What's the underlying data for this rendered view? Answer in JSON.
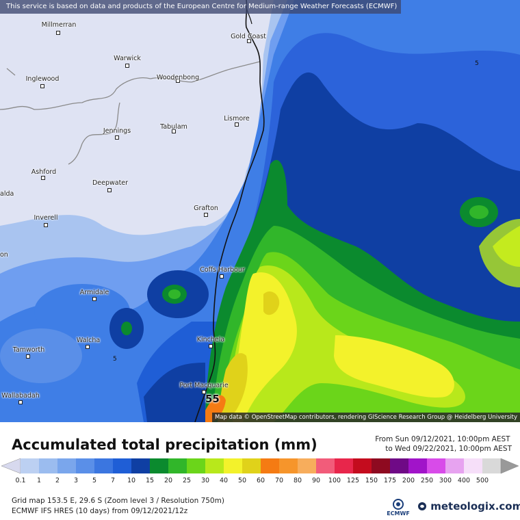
{
  "map": {
    "banner": "This service is based on data and products of the European Centre for Medium-range Weather Forecasts (ECMWF)",
    "attribution": "Map data © OpenStreetMap contributors, rendering GIScience Research Group @ Heidelberg University",
    "places": [
      {
        "id": "millmerran",
        "label": "Millmerran"
      },
      {
        "id": "gold-coast",
        "label": "Gold Coast"
      },
      {
        "id": "warwick",
        "label": "Warwick"
      },
      {
        "id": "inglewood",
        "label": "Inglewood"
      },
      {
        "id": "woodenbong",
        "label": "Woodenbong"
      },
      {
        "id": "lismore",
        "label": "Lismore"
      },
      {
        "id": "jennings",
        "label": "Jennings"
      },
      {
        "id": "tabulam",
        "label": "Tabulam"
      },
      {
        "id": "ashford",
        "label": "Ashford"
      },
      {
        "id": "deepwater",
        "label": "Deepwater"
      },
      {
        "id": "alda",
        "label": "alda"
      },
      {
        "id": "grafton",
        "label": "Grafton"
      },
      {
        "id": "inverell",
        "label": "Inverell"
      },
      {
        "id": "on",
        "label": "on"
      },
      {
        "id": "coffs-harbour",
        "label": "Coffs Harbour"
      },
      {
        "id": "armidale",
        "label": "Armidale"
      },
      {
        "id": "kinchela",
        "label": "Kinchela"
      },
      {
        "id": "walcha",
        "label": "Walcha"
      },
      {
        "id": "tamworth",
        "label": "Tamworth"
      },
      {
        "id": "port-macquarie",
        "label": "Port Macquarie"
      },
      {
        "id": "wallabadah",
        "label": "Wallabadah"
      }
    ],
    "contour_labels": [
      {
        "id": "c5-ne",
        "label": "5"
      },
      {
        "id": "c5-sw",
        "label": "5"
      }
    ],
    "max_value_label": "55"
  },
  "legend": {
    "title": "Accumulated total precipitation (mm)",
    "from": "From Sun 09/12/2021, 10:00pm AEST",
    "to": "to Wed 09/22/2021, 10:00pm AEST",
    "ticks": [
      "0.1",
      "1",
      "2",
      "3",
      "5",
      "7",
      "10",
      "15",
      "20",
      "25",
      "30",
      "40",
      "50",
      "60",
      "70",
      "80",
      "90",
      "100",
      "125",
      "150",
      "175",
      "200",
      "250",
      "300",
      "400",
      "500"
    ],
    "colors": [
      "#d7d9ee",
      "#bcd0f2",
      "#9bbcef",
      "#7aa6ec",
      "#5a8fe8",
      "#3b76e0",
      "#1f5ed6",
      "#0f3fa3",
      "#0b8a2e",
      "#31b62a",
      "#6bd51a",
      "#b8e81b",
      "#f3f22b",
      "#e0d21a",
      "#f57b13",
      "#f6952b",
      "#f7ad5c",
      "#f25c7a",
      "#e8264b",
      "#c40c1e",
      "#8e0a20",
      "#6f0a86",
      "#a114c9",
      "#d84be9",
      "#e7a3f0",
      "#f6dff9",
      "#d9d9d9",
      "#999999"
    ],
    "grid_info": "Grid map 153.5 E, 29.6 S (Zoom level 3 / Resolution 750m)",
    "model_info": "ECMWF IFS HRES (10 days) from 09/12/2021/12z",
    "ecmwf_label": "ECMWF",
    "meteologix_label": "meteologix.com"
  }
}
